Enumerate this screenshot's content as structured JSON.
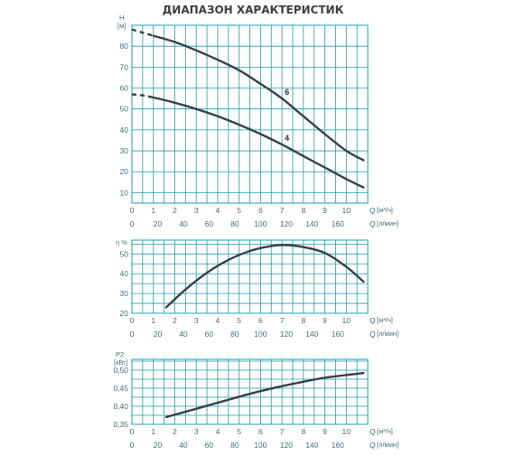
{
  "title": "ДИАПАЗОН ХАРАКТЕРИСТИК",
  "chart_data": [
    {
      "type": "line",
      "ylabel": "H",
      "yunit": "[м]",
      "xlabel_top": "Q",
      "xunit_top": "[м³/ч]",
      "xlabel_bottom": "Q",
      "xunit_bottom": "[л/мин]",
      "xlim": [
        0,
        11
      ],
      "ylim": [
        5,
        90
      ],
      "grid": true,
      "x_ticks_m3h": [
        "0",
        "1",
        "2",
        "3",
        "4",
        "5",
        "6",
        "7",
        "8",
        "9",
        "10"
      ],
      "x_ticks_lmin": [
        "0",
        "20",
        "40",
        "60",
        "80",
        "100",
        "120",
        "140",
        "160"
      ],
      "y_ticks": [
        "10",
        "20",
        "30",
        "40",
        "50",
        "60",
        "70",
        "80"
      ],
      "series": [
        {
          "name": "6",
          "dashed_x": [
            0,
            0.5,
            1.0
          ],
          "dashed_y": [
            88,
            86.5,
            85
          ],
          "x": [
            1.0,
            2,
            3,
            4,
            5,
            6,
            7,
            8,
            9,
            10,
            10.8
          ],
          "y": [
            85,
            82,
            78,
            73.5,
            68.5,
            62,
            55,
            46.5,
            38,
            30,
            25.5
          ]
        },
        {
          "name": "4",
          "dashed_x": [
            0,
            0.5,
            1.0
          ],
          "dashed_y": [
            57,
            56.5,
            55.5
          ],
          "x": [
            1.0,
            2,
            3,
            4,
            5,
            6,
            7,
            8,
            9,
            10,
            10.8
          ],
          "y": [
            55.5,
            53,
            50,
            46.5,
            42.5,
            38,
            33,
            27.5,
            22,
            16.5,
            12.5
          ]
        }
      ]
    },
    {
      "type": "line",
      "ylabel": "η %",
      "xlabel_top": "Q",
      "xunit_top": "[м³/ч]",
      "xlabel_bottom": "Q",
      "xunit_bottom": "[л/мин]",
      "xlim": [
        0,
        11
      ],
      "ylim": [
        20,
        57
      ],
      "grid": true,
      "x_ticks_m3h": [
        "0",
        "1",
        "2",
        "3",
        "4",
        "5",
        "6",
        "7",
        "8",
        "9",
        "10"
      ],
      "x_ticks_lmin": [
        "0",
        "20",
        "40",
        "60",
        "80",
        "100",
        "120",
        "140",
        "160"
      ],
      "y_ticks": [
        "20",
        "30",
        "40",
        "50"
      ],
      "series": [
        {
          "x": [
            1.6,
            2.5,
            3.5,
            4.5,
            5.5,
            6.5,
            7.2,
            8,
            9,
            10,
            10.8
          ],
          "y": [
            23,
            32,
            40.5,
            47,
            51.5,
            54,
            54.5,
            53.5,
            50.5,
            43.5,
            36
          ]
        }
      ]
    },
    {
      "type": "line",
      "ylabel": "P2",
      "yunit": "[кВт]",
      "xlabel_top": "Q",
      "xunit_top": "[м³/ч]",
      "xlabel_bottom": "Q",
      "xunit_bottom": "[л/мин]",
      "xlim": [
        0,
        11
      ],
      "ylim": [
        0.35,
        0.53
      ],
      "grid": true,
      "x_ticks_m3h": [
        "0",
        "1",
        "2",
        "3",
        "4",
        "5",
        "6",
        "7",
        "8",
        "9",
        "10"
      ],
      "x_ticks_lmin": [
        "0",
        "20",
        "40",
        "60",
        "80",
        "100",
        "120",
        "140",
        "160"
      ],
      "y_ticks": [
        "0,35",
        "0,40",
        "0,45",
        "0,50"
      ],
      "series": [
        {
          "x": [
            1.6,
            3,
            4.5,
            6,
            7.5,
            9,
            10.8
          ],
          "y": [
            0.37,
            0.393,
            0.418,
            0.442,
            0.462,
            0.479,
            0.492
          ]
        }
      ]
    }
  ]
}
